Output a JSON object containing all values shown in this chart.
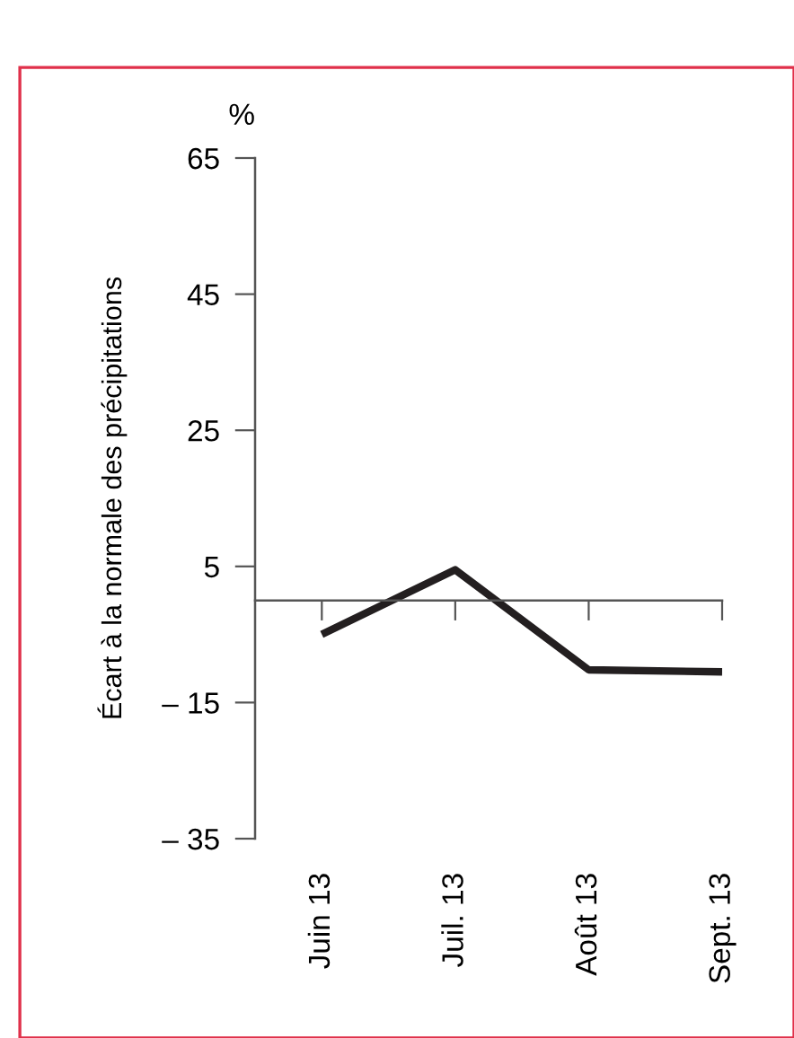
{
  "chart_data": {
    "type": "line",
    "ylabel": "Écart à la normale des précipitations",
    "annotations": [
      "%"
    ],
    "categories": [
      "Juin 13",
      "Juil. 13",
      "Août 13",
      "Sept. 13"
    ],
    "series": [
      {
        "color": "#231f20",
        "values": [
          -5,
          4.5,
          -10.2,
          -10.5
        ]
      }
    ],
    "ylim": [
      -35,
      65
    ],
    "yticks": [
      {
        "value": -35,
        "label": "– 35"
      },
      {
        "value": -15,
        "label": "– 15"
      },
      5,
      25,
      45,
      65
    ],
    "grid": false,
    "legend": false,
    "marker": "none",
    "line_style": "solid"
  }
}
